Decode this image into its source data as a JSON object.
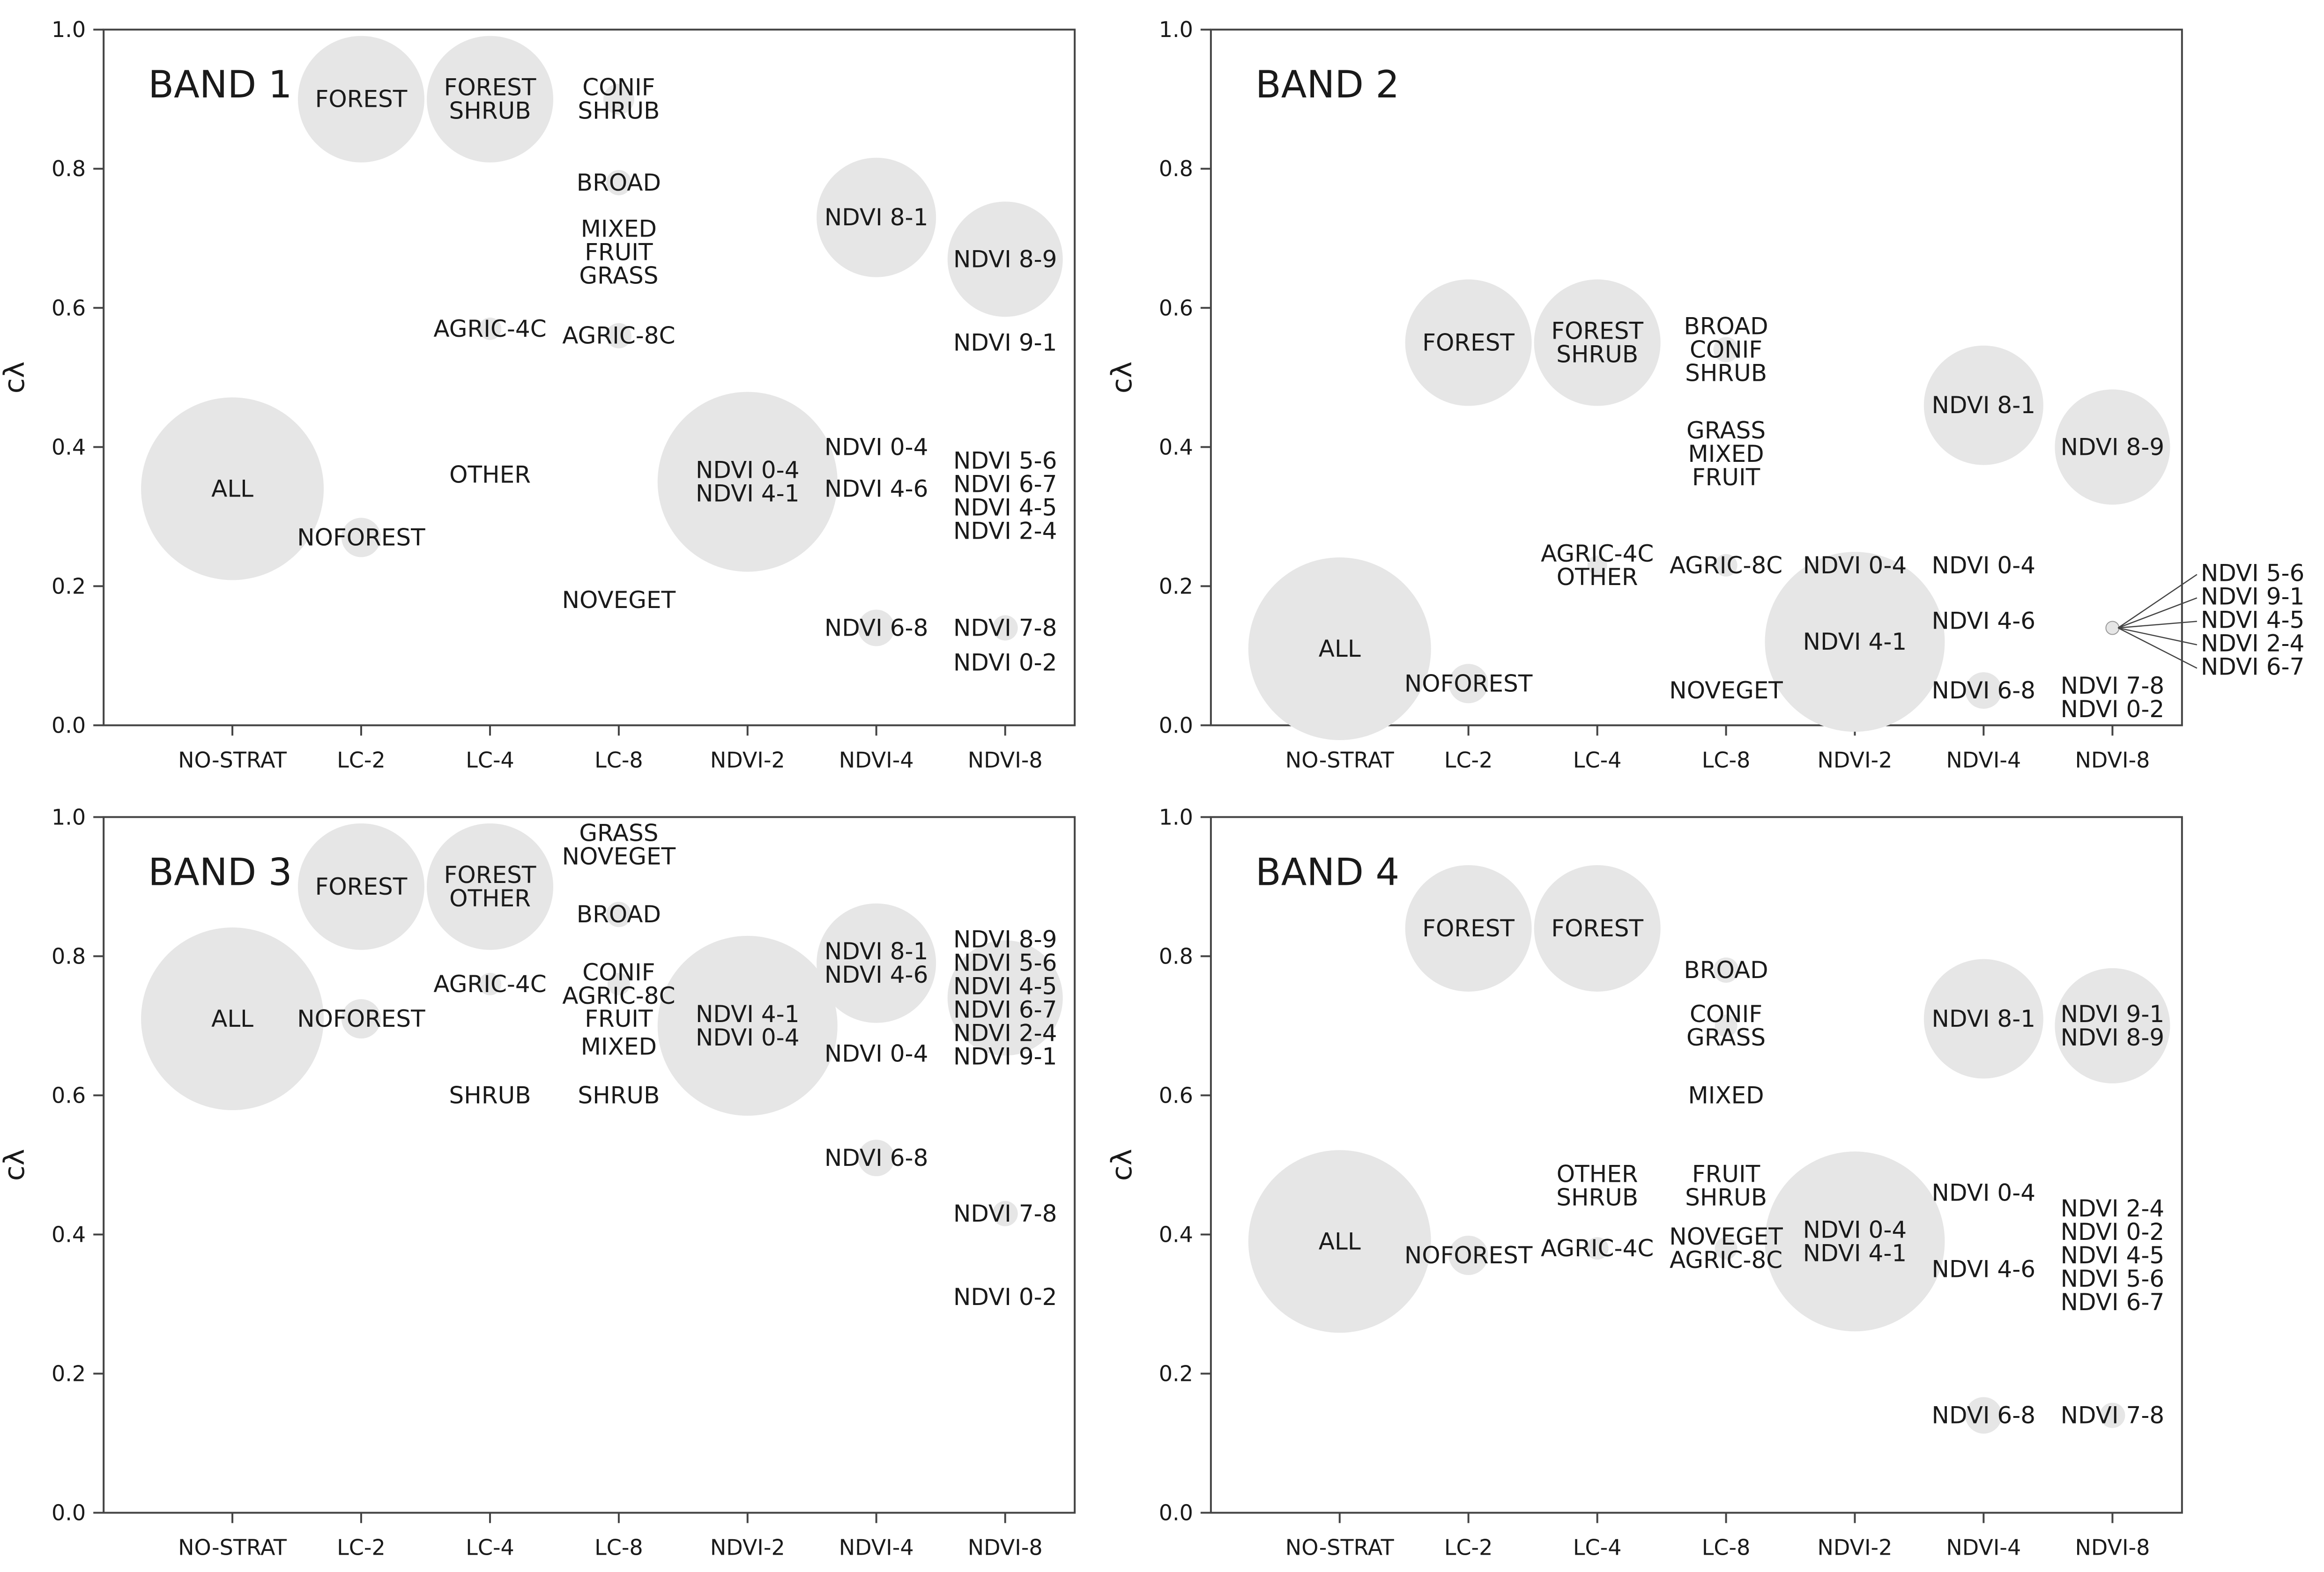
{
  "figure": {
    "ylabel": "cλ",
    "colors": {
      "bubble_fill": "#e6e6e6",
      "axis": "#444444",
      "text": "#1a1a1a"
    }
  },
  "chart_data": [
    {
      "type": "scatter",
      "title": "BAND 1",
      "categories": [
        "NO-STRAT",
        "LC-2",
        "LC-4",
        "LC-8",
        "NDVI-2",
        "NDVI-4",
        "NDVI-8"
      ],
      "ylabel": "cλ",
      "ylim": [
        0,
        1.0
      ],
      "yticks": [
        "0.0",
        "0.2",
        "0.4",
        "0.6",
        "0.8",
        "1.0"
      ],
      "points": [
        {
          "x": "NO-STRAT",
          "y": 0.34,
          "label": "ALL",
          "size": 130
        },
        {
          "x": "LC-2",
          "y": 0.9,
          "label": "FOREST",
          "size": 90
        },
        {
          "x": "LC-2",
          "y": 0.27,
          "label": "NOFOREST",
          "size": 28
        },
        {
          "x": "LC-4",
          "y": 0.9,
          "label": "FOREST\nSHRUB",
          "size": 90
        },
        {
          "x": "LC-4",
          "y": 0.57,
          "label": "AGRIC-4C",
          "size": 16
        },
        {
          "x": "LC-4",
          "y": 0.36,
          "label": "OTHER",
          "size": 0
        },
        {
          "x": "LC-8",
          "y": 0.9,
          "label": "CONIF\nSHRUB",
          "size": 22
        },
        {
          "x": "LC-8",
          "y": 0.78,
          "label": "BROAD",
          "size": 18
        },
        {
          "x": "LC-8",
          "y": 0.68,
          "label": "MIXED\nFRUIT\nGRASS",
          "size": 0
        },
        {
          "x": "LC-8",
          "y": 0.56,
          "label": "AGRIC-8C",
          "size": 18
        },
        {
          "x": "LC-8",
          "y": 0.18,
          "label": "NOVEGET",
          "size": 0
        },
        {
          "x": "NDVI-2",
          "y": 0.35,
          "label": "NDVI 0-4\nNDVI 4-1",
          "size": 128
        },
        {
          "x": "NDVI-4",
          "y": 0.73,
          "label": "NDVI 8-1",
          "size": 85
        },
        {
          "x": "NDVI-4",
          "y": 0.4,
          "label": "NDVI 0-4",
          "size": 0
        },
        {
          "x": "NDVI-4",
          "y": 0.34,
          "label": "NDVI 4-6",
          "size": 0
        },
        {
          "x": "NDVI-4",
          "y": 0.14,
          "label": "NDVI 6-8",
          "size": 26
        },
        {
          "x": "NDVI-8",
          "y": 0.67,
          "label": "NDVI 8-9",
          "size": 82
        },
        {
          "x": "NDVI-8",
          "y": 0.55,
          "label": "NDVI 9-1",
          "size": 0
        },
        {
          "x": "NDVI-8",
          "y": 0.33,
          "label": "NDVI 5-6\nNDVI 6-7\nNDVI 4-5\nNDVI 2-4",
          "size": 0
        },
        {
          "x": "NDVI-8",
          "y": 0.14,
          "label": "NDVI 7-8",
          "size": 18
        },
        {
          "x": "NDVI-8",
          "y": 0.09,
          "label": "NDVI 0-2",
          "size": 0
        }
      ]
    },
    {
      "type": "scatter",
      "title": "BAND 2",
      "categories": [
        "NO-STRAT",
        "LC-2",
        "LC-4",
        "LC-8",
        "NDVI-2",
        "NDVI-4",
        "NDVI-8"
      ],
      "ylabel": "cλ",
      "ylim": [
        0,
        1.0
      ],
      "yticks": [
        "0.0",
        "0.2",
        "0.4",
        "0.6",
        "0.8",
        "1.0"
      ],
      "points": [
        {
          "x": "NO-STRAT",
          "y": 0.11,
          "label": "ALL",
          "size": 130
        },
        {
          "x": "LC-2",
          "y": 0.55,
          "label": "FOREST",
          "size": 90
        },
        {
          "x": "LC-2",
          "y": 0.06,
          "label": "NOFOREST",
          "size": 28
        },
        {
          "x": "LC-4",
          "y": 0.55,
          "label": "FOREST\nSHRUB",
          "size": 90
        },
        {
          "x": "LC-4",
          "y": 0.23,
          "label": "AGRIC-4C\nOTHER",
          "size": 14
        },
        {
          "x": "LC-8",
          "y": 0.54,
          "label": "BROAD\nCONIF\nSHRUB",
          "size": 18
        },
        {
          "x": "LC-8",
          "y": 0.39,
          "label": "GRASS\nMIXED\nFRUIT",
          "size": 0
        },
        {
          "x": "LC-8",
          "y": 0.23,
          "label": "AGRIC-8C",
          "size": 16
        },
        {
          "x": "LC-8",
          "y": 0.05,
          "label": "NOVEGET",
          "size": 0
        },
        {
          "x": "NDVI-2",
          "y": 0.23,
          "label": "NDVI 0-4",
          "size": 0
        },
        {
          "x": "NDVI-2",
          "y": 0.12,
          "label": "NDVI 4-1",
          "size": 128
        },
        {
          "x": "NDVI-4",
          "y": 0.46,
          "label": "NDVI 8-1",
          "size": 85
        },
        {
          "x": "NDVI-4",
          "y": 0.23,
          "label": "NDVI 0-4",
          "size": 0
        },
        {
          "x": "NDVI-4",
          "y": 0.15,
          "label": "NDVI 4-6",
          "size": 0
        },
        {
          "x": "NDVI-4",
          "y": 0.05,
          "label": "NDVI 6-8",
          "size": 26
        },
        {
          "x": "NDVI-8",
          "y": 0.4,
          "label": "NDVI 8-9",
          "size": 82
        },
        {
          "x": "NDVI-8",
          "y": 0.04,
          "label": "NDVI 7-8\nNDVI 0-2",
          "size": 0
        }
      ],
      "callout": {
        "x": "NDVI-8",
        "y": 0.14,
        "labels": [
          "NDVI 5-6",
          "NDVI 9-1",
          "NDVI 4-5",
          "NDVI 2-4",
          "NDVI 6-7"
        ]
      }
    },
    {
      "type": "scatter",
      "title": "BAND 3",
      "categories": [
        "NO-STRAT",
        "LC-2",
        "LC-4",
        "LC-8",
        "NDVI-2",
        "NDVI-4",
        "NDVI-8"
      ],
      "ylabel": "cλ",
      "ylim": [
        0,
        1.0
      ],
      "yticks": [
        "0.0",
        "0.2",
        "0.4",
        "0.6",
        "0.8",
        "1.0"
      ],
      "points": [
        {
          "x": "NO-STRAT",
          "y": 0.71,
          "label": "ALL",
          "size": 130
        },
        {
          "x": "LC-2",
          "y": 0.9,
          "label": "FOREST",
          "size": 90
        },
        {
          "x": "LC-2",
          "y": 0.71,
          "label": "NOFOREST",
          "size": 28
        },
        {
          "x": "LC-4",
          "y": 0.9,
          "label": "FOREST\nOTHER",
          "size": 90
        },
        {
          "x": "LC-4",
          "y": 0.76,
          "label": "AGRIC-4C",
          "size": 16
        },
        {
          "x": "LC-4",
          "y": 0.6,
          "label": "SHRUB",
          "size": 0
        },
        {
          "x": "LC-8",
          "y": 0.96,
          "label": "GRASS\nNOVEGET",
          "size": 0
        },
        {
          "x": "LC-8",
          "y": 0.86,
          "label": "BROAD",
          "size": 18
        },
        {
          "x": "LC-8",
          "y": 0.76,
          "label": "CONIF\nAGRIC-8C",
          "size": 16
        },
        {
          "x": "LC-8",
          "y": 0.71,
          "label": "FRUIT",
          "size": 0
        },
        {
          "x": "LC-8",
          "y": 0.67,
          "label": "MIXED",
          "size": 0
        },
        {
          "x": "LC-8",
          "y": 0.6,
          "label": "SHRUB",
          "size": 0
        },
        {
          "x": "NDVI-2",
          "y": 0.7,
          "label": "NDVI 4-1\nNDVI 0-4",
          "size": 128
        },
        {
          "x": "NDVI-4",
          "y": 0.79,
          "label": "NDVI 8-1\nNDVI 4-6",
          "size": 85
        },
        {
          "x": "NDVI-4",
          "y": 0.66,
          "label": "NDVI 0-4",
          "size": 0
        },
        {
          "x": "NDVI-4",
          "y": 0.51,
          "label": "NDVI 6-8",
          "size": 26
        },
        {
          "x": "NDVI-8",
          "y": 0.74,
          "label": "NDVI 8-9\nNDVI 5-6\nNDVI 4-5\nNDVI 6-7\nNDVI 2-4\nNDVI 9-1",
          "size": 82
        },
        {
          "x": "NDVI-8",
          "y": 0.43,
          "label": "NDVI 7-8",
          "size": 18
        },
        {
          "x": "NDVI-8",
          "y": 0.31,
          "label": "NDVI 0-2",
          "size": 0
        }
      ]
    },
    {
      "type": "scatter",
      "title": "BAND 4",
      "categories": [
        "NO-STRAT",
        "LC-2",
        "LC-4",
        "LC-8",
        "NDVI-2",
        "NDVI-4",
        "NDVI-8"
      ],
      "ylabel": "cλ",
      "ylim": [
        0,
        1.0
      ],
      "yticks": [
        "0.0",
        "0.2",
        "0.4",
        "0.6",
        "0.8",
        "1.0"
      ],
      "points": [
        {
          "x": "NO-STRAT",
          "y": 0.39,
          "label": "ALL",
          "size": 130
        },
        {
          "x": "LC-2",
          "y": 0.84,
          "label": "FOREST",
          "size": 90
        },
        {
          "x": "LC-2",
          "y": 0.37,
          "label": "NOFOREST",
          "size": 28
        },
        {
          "x": "LC-4",
          "y": 0.84,
          "label": "FOREST",
          "size": 90
        },
        {
          "x": "LC-4",
          "y": 0.47,
          "label": "OTHER\nSHRUB",
          "size": 0
        },
        {
          "x": "LC-4",
          "y": 0.38,
          "label": "AGRIC-4C",
          "size": 16
        },
        {
          "x": "LC-8",
          "y": 0.78,
          "label": "BROAD",
          "size": 18
        },
        {
          "x": "LC-8",
          "y": 0.7,
          "label": "CONIF\nGRASS",
          "size": 16
        },
        {
          "x": "LC-8",
          "y": 0.6,
          "label": "MIXED",
          "size": 0
        },
        {
          "x": "LC-8",
          "y": 0.47,
          "label": "FRUIT\nSHRUB",
          "size": 0
        },
        {
          "x": "LC-8",
          "y": 0.38,
          "label": "NOVEGET\nAGRIC-8C",
          "size": 16
        },
        {
          "x": "NDVI-2",
          "y": 0.39,
          "label": "NDVI 0-4\nNDVI 4-1",
          "size": 128
        },
        {
          "x": "NDVI-4",
          "y": 0.71,
          "label": "NDVI 8-1",
          "size": 85
        },
        {
          "x": "NDVI-4",
          "y": 0.46,
          "label": "NDVI 0-4",
          "size": 0
        },
        {
          "x": "NDVI-4",
          "y": 0.35,
          "label": "NDVI 4-6",
          "size": 0
        },
        {
          "x": "NDVI-4",
          "y": 0.14,
          "label": "NDVI 6-8",
          "size": 26
        },
        {
          "x": "NDVI-8",
          "y": 0.7,
          "label": "NDVI 9-1\nNDVI 8-9",
          "size": 82
        },
        {
          "x": "NDVI-8",
          "y": 0.37,
          "label": "NDVI 2-4\nNDVI 0-2\nNDVI 4-5\nNDVI 5-6\nNDVI 6-7",
          "size": 0
        },
        {
          "x": "NDVI-8",
          "y": 0.14,
          "label": "NDVI 7-8",
          "size": 18
        }
      ]
    }
  ]
}
